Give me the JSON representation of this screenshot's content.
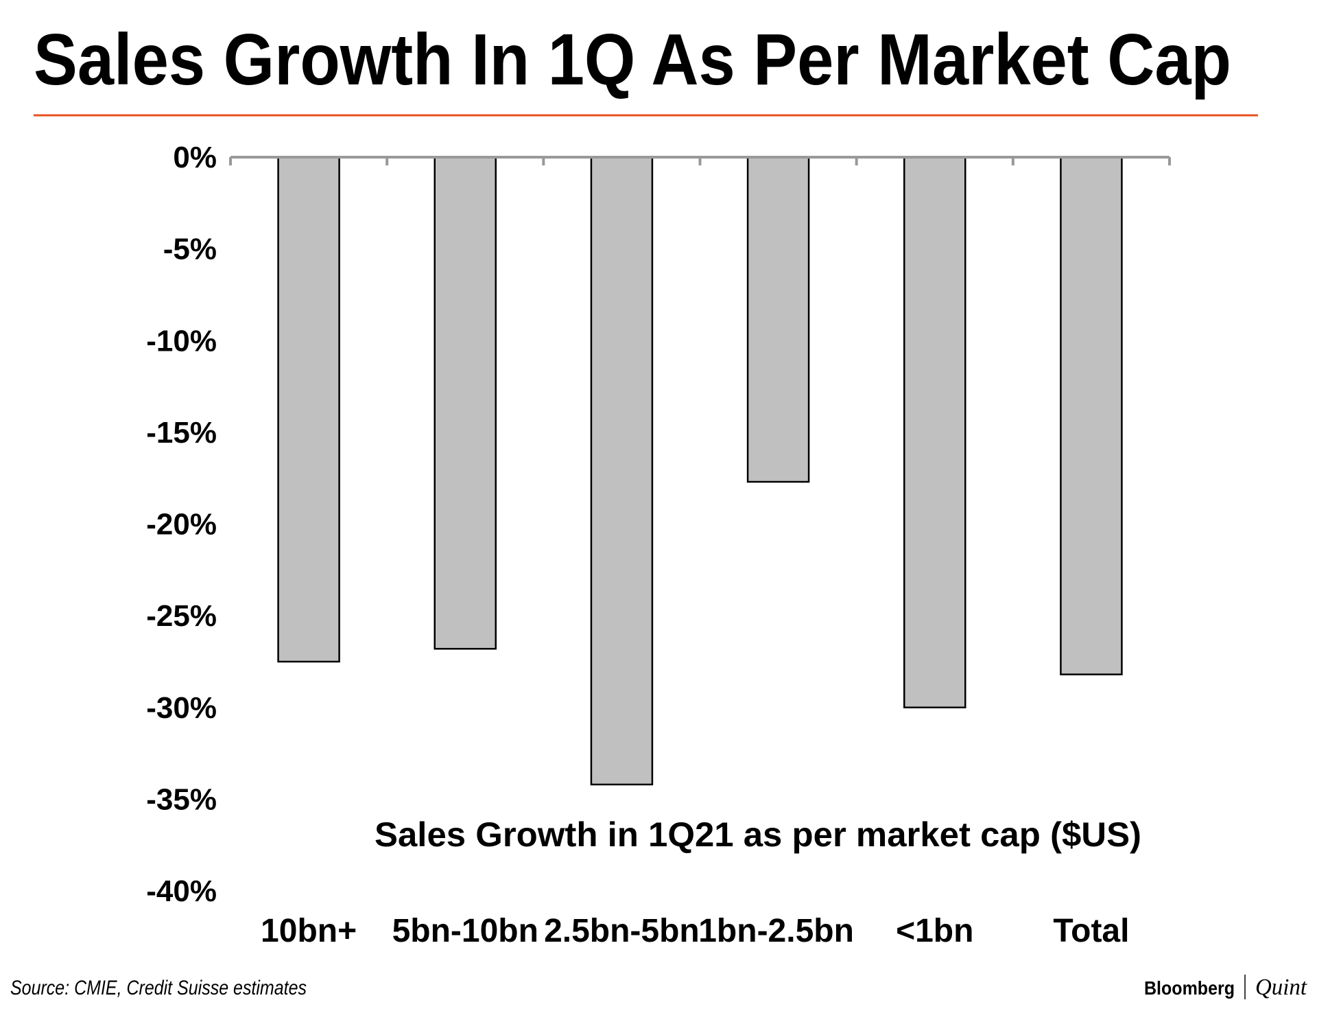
{
  "header": {
    "title": "Sales Growth In 1Q As Per Market Cap",
    "accent_color": "#e8501e"
  },
  "chart_data": {
    "type": "bar",
    "title": "Sales Growth In 1Q As Per Market Cap",
    "xlabel": "Sales Growth in 1Q21 as per market cap ($US)",
    "ylabel": "",
    "categories": [
      "10bn+",
      "5bn-10bn",
      "2.5bn-5bn",
      "1bn-2.5bn",
      "<1bn",
      "Total"
    ],
    "values": [
      -27.5,
      -26.8,
      -34.2,
      -17.7,
      -30.0,
      -28.2
    ],
    "ylim": [
      -40,
      0
    ],
    "yticks": [
      "0%",
      "-5%",
      "-10%",
      "-15%",
      "-20%",
      "-25%",
      "-30%",
      "-35%",
      "-40%"
    ],
    "bar_color": "#c0c0c0",
    "grid": false,
    "legend": "none"
  },
  "footer": {
    "source": "Source: CMIE, Credit Suisse estimates",
    "brand_left": "Bloomberg",
    "brand_right": "Quint"
  }
}
